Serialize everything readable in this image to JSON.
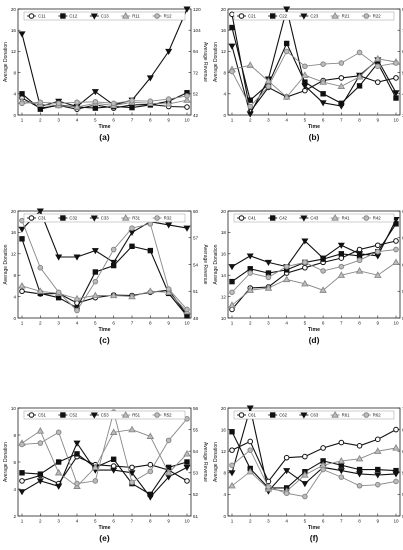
{
  "chart_data": [
    {
      "id": "a",
      "type": "line",
      "caption": "(a)",
      "xlabel": "Time",
      "ylabel": "Average Donation",
      "y2label": "Average Revenue",
      "x": [
        1,
        2,
        3,
        4,
        5,
        6,
        7,
        8,
        9,
        10
      ],
      "xticks": [
        "1",
        "2",
        "3",
        "4",
        "5",
        "6",
        "7",
        "8",
        "9",
        "10"
      ],
      "ylim": [
        0,
        20
      ],
      "yticks": [
        "0",
        "4",
        "8",
        "12",
        "16",
        "20"
      ],
      "y2lim": [
        42,
        120
      ],
      "y2ticks": [
        "42",
        "52",
        "72",
        "94",
        "104",
        "120"
      ],
      "legend_position": "top",
      "series": [
        {
          "name": "C11",
          "marker": "circle",
          "color": "#111111",
          "axis": "left",
          "values": [
            3.2,
            1.3,
            1.8,
            1.1,
            1.9,
            1.3,
            1.9,
            2.0,
            1.6,
            1.5
          ]
        },
        {
          "name": "C12",
          "marker": "square",
          "color": "#111111",
          "axis": "left",
          "values": [
            4.0,
            1.1,
            1.9,
            1.5,
            1.3,
            1.6,
            1.4,
            1.9,
            2.6,
            4.2
          ]
        },
        {
          "name": "C13",
          "marker": "triangle-down",
          "color": "#111111",
          "axis": "left",
          "values": [
            15.3,
            1.6,
            2.6,
            1.6,
            4.4,
            1.9,
            2.8,
            7.0,
            12.0,
            20.0
          ]
        },
        {
          "name": "R11",
          "marker": "triangle-up",
          "color": "#888888",
          "axis": "left",
          "values": [
            2.6,
            2.0,
            1.8,
            1.5,
            2.2,
            1.8,
            2.4,
            2.2,
            2.1,
            2.8
          ]
        },
        {
          "name": "R12",
          "marker": "circle",
          "color": "#888888",
          "axis": "left",
          "values": [
            2.2,
            2.4,
            2.2,
            2.4,
            2.5,
            2.2,
            2.7,
            2.6,
            3.0,
            3.6
          ]
        }
      ]
    },
    {
      "id": "b",
      "type": "line",
      "caption": "(b)",
      "xlabel": "Time",
      "ylabel": "Average Donation",
      "y2label": "Average Revenue",
      "x": [
        1,
        2,
        3,
        4,
        5,
        6,
        7,
        8,
        9,
        10
      ],
      "xticks": [
        "1",
        "2",
        "3",
        "4",
        "5",
        "6",
        "7",
        "8",
        "9",
        "10"
      ],
      "ylim": [
        0,
        20
      ],
      "yticks": [
        "0",
        "4",
        "8",
        "12",
        "16",
        "20"
      ],
      "y2lim": [
        30,
        90
      ],
      "y2ticks": [
        "30",
        "42",
        "54",
        "66",
        "78",
        "90"
      ],
      "legend_position": "top",
      "series": [
        {
          "name": "C21",
          "marker": "circle",
          "color": "#111111",
          "axis": "left",
          "values": [
            19.0,
            0.6,
            5.2,
            3.4,
            4.6,
            6.5,
            7.0,
            7.4,
            6.2,
            7.0
          ]
        },
        {
          "name": "C22",
          "marker": "square",
          "color": "#111111",
          "axis": "left",
          "values": [
            16.5,
            2.8,
            5.8,
            13.5,
            6.2,
            4.0,
            2.2,
            5.5,
            9.8,
            3.2
          ]
        },
        {
          "name": "C23",
          "marker": "triangle-down",
          "color": "#111111",
          "axis": "left",
          "values": [
            13.0,
            0.2,
            6.8,
            20.0,
            5.5,
            2.3,
            1.7,
            7.5,
            10.4,
            4.2
          ]
        },
        {
          "name": "R21",
          "marker": "triangle-up",
          "color": "#888888",
          "axis": "left",
          "values": [
            8.6,
            9.4,
            6.4,
            3.4,
            7.5,
            6.2,
            5.4,
            7.2,
            10.6,
            10.0
          ]
        },
        {
          "name": "R22",
          "marker": "circle",
          "color": "#888888",
          "axis": "left",
          "values": [
            8.2,
            1.6,
            5.4,
            12.0,
            9.2,
            9.6,
            9.8,
            11.8,
            9.2,
            9.8
          ]
        }
      ]
    },
    {
      "id": "c",
      "type": "line",
      "caption": "(c)",
      "xlabel": "Time",
      "ylabel": "Average Donation",
      "y2label": "Average Revenue",
      "x": [
        1,
        2,
        3,
        4,
        5,
        6,
        7,
        8,
        9,
        10
      ],
      "xticks": [
        "1",
        "2",
        "3",
        "4",
        "5",
        "6",
        "7",
        "8",
        "9",
        "10"
      ],
      "ylim": [
        0,
        20
      ],
      "yticks": [
        "0",
        "4",
        "8",
        "12",
        "16",
        "20"
      ],
      "y2lim": [
        48,
        60
      ],
      "y2ticks": [
        "48",
        "51",
        "54",
        "57",
        "60"
      ],
      "legend_position": "top",
      "series": [
        {
          "name": "C31",
          "marker": "circle",
          "color": "#111111",
          "axis": "left",
          "values": [
            5.0,
            4.5,
            4.6,
            2.8,
            3.8,
            4.3,
            4.2,
            4.8,
            5.2,
            0.6
          ]
        },
        {
          "name": "C32",
          "marker": "square",
          "color": "#111111",
          "axis": "left",
          "values": [
            14.8,
            4.6,
            3.8,
            1.9,
            8.6,
            9.8,
            13.4,
            12.6,
            4.6,
            0.4
          ]
        },
        {
          "name": "C33",
          "marker": "triangle-down",
          "color": "#111111",
          "axis": "left",
          "values": [
            16.6,
            20.0,
            11.4,
            11.4,
            12.6,
            10.4,
            16.0,
            18.0,
            17.4,
            16.8
          ]
        },
        {
          "name": "R31",
          "marker": "triangle-up",
          "color": "#888888",
          "axis": "left",
          "values": [
            6.0,
            5.0,
            4.6,
            3.6,
            4.2,
            4.2,
            4.0,
            5.0,
            4.8,
            1.2
          ]
        },
        {
          "name": "R32",
          "marker": "circle",
          "color": "#888888",
          "axis": "left",
          "values": [
            18.2,
            9.4,
            4.8,
            1.4,
            6.8,
            12.8,
            16.8,
            17.6,
            5.4,
            1.6
          ]
        }
      ]
    },
    {
      "id": "d",
      "type": "line",
      "caption": "(d)",
      "xlabel": "Time",
      "ylabel": "Average Donation",
      "y2label": "Average Revenue",
      "x": [
        1,
        2,
        3,
        4,
        5,
        6,
        7,
        8,
        9,
        10
      ],
      "xticks": [
        "1",
        "2",
        "3",
        "4",
        "5",
        "6",
        "7",
        "8",
        "9",
        "10"
      ],
      "ylim": [
        10,
        20
      ],
      "yticks": [
        "10",
        "12",
        "14",
        "16",
        "18",
        "20"
      ],
      "y2lim": [
        56,
        68
      ],
      "y2ticks": [
        "56",
        "59",
        "62",
        "65",
        "68"
      ],
      "legend_position": "top",
      "series": [
        {
          "name": "C41",
          "marker": "circle",
          "color": "#111111",
          "axis": "left",
          "values": [
            10.8,
            12.8,
            12.9,
            14.2,
            14.7,
            15.2,
            15.6,
            16.4,
            16.8,
            17.2
          ]
        },
        {
          "name": "C42",
          "marker": "square",
          "color": "#111111",
          "axis": "left",
          "values": [
            13.4,
            14.6,
            14.2,
            14.5,
            15.2,
            15.5,
            16.0,
            15.8,
            16.2,
            18.8
          ]
        },
        {
          "name": "C43",
          "marker": "triangle-down",
          "color": "#111111",
          "axis": "left",
          "values": [
            14.8,
            15.8,
            15.2,
            14.8,
            17.2,
            15.6,
            16.8,
            16.0,
            15.8,
            19.2
          ]
        },
        {
          "name": "R41",
          "marker": "triangle-up",
          "color": "#888888",
          "axis": "left",
          "values": [
            11.2,
            12.6,
            12.8,
            13.6,
            13.2,
            12.6,
            14.0,
            14.4,
            14.0,
            15.2
          ]
        },
        {
          "name": "R42",
          "marker": "circle",
          "color": "#888888",
          "axis": "left",
          "values": [
            12.4,
            14.2,
            13.8,
            14.8,
            15.2,
            14.4,
            14.8,
            15.4,
            16.2,
            16.4
          ]
        }
      ]
    },
    {
      "id": "e",
      "type": "line",
      "caption": "(e)",
      "xlabel": "Time",
      "ylabel": "Average Donation",
      "y2label": "Average Revenue",
      "x": [
        1,
        2,
        3,
        4,
        5,
        6,
        7,
        8,
        9,
        10
      ],
      "xticks": [
        "1",
        "2",
        "3",
        "4",
        "5",
        "6",
        "7",
        "8",
        "9",
        "10"
      ],
      "ylim": [
        2,
        10
      ],
      "yticks": [
        "2",
        "4",
        "6",
        "8",
        "10"
      ],
      "y2lim": [
        51,
        56
      ],
      "y2ticks": [
        "51",
        "52",
        "53",
        "54",
        "55",
        "56"
      ],
      "legend_position": "top",
      "series": [
        {
          "name": "C51",
          "marker": "circle",
          "color": "#111111",
          "axis": "left",
          "values": [
            4.6,
            5.0,
            4.4,
            6.4,
            5.8,
            5.7,
            5.6,
            5.8,
            5.4,
            4.6
          ]
        },
        {
          "name": "C52",
          "marker": "square",
          "color": "#111111",
          "axis": "left",
          "values": [
            5.2,
            5.1,
            6.0,
            6.6,
            5.6,
            6.2,
            4.4,
            3.6,
            5.6,
            6.0
          ]
        },
        {
          "name": "C53",
          "marker": "triangle-down",
          "color": "#111111",
          "axis": "left",
          "values": [
            3.8,
            4.6,
            4.2,
            7.4,
            5.4,
            5.4,
            5.2,
            3.4,
            4.9,
            5.6
          ]
        },
        {
          "name": "R51",
          "marker": "triangle-up",
          "color": "#888888",
          "axis": "left",
          "values": [
            7.4,
            8.3,
            5.2,
            4.2,
            5.6,
            8.2,
            8.4,
            7.9,
            5.2,
            6.6
          ]
        },
        {
          "name": "R52",
          "marker": "circle",
          "color": "#888888",
          "axis": "left",
          "values": [
            7.3,
            7.4,
            8.2,
            4.4,
            4.6,
            9.7,
            4.5,
            5.3,
            7.6,
            9.2
          ]
        }
      ]
    },
    {
      "id": "f",
      "type": "line",
      "caption": "(f)",
      "xlabel": "Time",
      "ylabel": "Average Donation",
      "y2label": "Average Revenue",
      "x": [
        1,
        2,
        3,
        4,
        5,
        6,
        7,
        8,
        9,
        10
      ],
      "xticks": [
        "1",
        "2",
        "3",
        "4",
        "5",
        "6",
        "7",
        "8",
        "9",
        "10"
      ],
      "ylim": [
        0,
        20
      ],
      "yticks": [
        "0",
        "4",
        "8",
        "12",
        "16",
        "20"
      ],
      "y2lim": [
        50,
        70
      ],
      "y2ticks": [
        "50",
        "54",
        "58",
        "62",
        "66",
        "70"
      ],
      "legend_position": "top",
      "series": [
        {
          "name": "C61",
          "marker": "circle",
          "color": "#111111",
          "axis": "left",
          "values": [
            12.2,
            13.8,
            6.4,
            10.8,
            11.0,
            12.6,
            13.6,
            13.0,
            14.2,
            16.0
          ]
        },
        {
          "name": "C62",
          "marker": "square",
          "color": "#111111",
          "axis": "left",
          "values": [
            15.6,
            8.8,
            5.2,
            5.2,
            8.2,
            10.2,
            9.4,
            8.6,
            8.6,
            8.4
          ]
        },
        {
          "name": "C63",
          "marker": "triangle-down",
          "color": "#111111",
          "axis": "left",
          "values": [
            8.0,
            20.0,
            4.6,
            8.4,
            6.0,
            9.0,
            8.4,
            7.8,
            7.6,
            7.8
          ]
        },
        {
          "name": "R61",
          "marker": "triangle-up",
          "color": "#888888",
          "axis": "left",
          "values": [
            5.6,
            8.2,
            5.0,
            4.6,
            7.6,
            9.4,
            10.2,
            10.6,
            12.0,
            12.6
          ]
        },
        {
          "name": "R62",
          "marker": "circle",
          "color": "#888888",
          "axis": "left",
          "values": [
            9.4,
            12.2,
            5.4,
            4.2,
            3.6,
            8.6,
            7.2,
            5.6,
            5.8,
            6.4
          ]
        }
      ]
    }
  ]
}
